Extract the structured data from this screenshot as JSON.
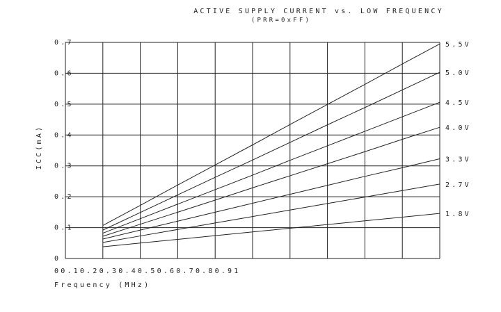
{
  "chart_data": {
    "type": "line",
    "title": "ACTIVE SUPPLY CURRENT vs. LOW FREQUENCY",
    "subtitle": "(PRR=0xFF)",
    "xlabel": "Frequency (MHz)",
    "ylabel": "ICC(mA)",
    "x": [
      0.1,
      0.2,
      0.3,
      0.4,
      0.5,
      0.6,
      0.7,
      0.8,
      0.9,
      1
    ],
    "series": [
      {
        "name": "5.5V",
        "color": "#222222",
        "values": [
          0.107,
          0.172,
          0.238,
          0.303,
          0.368,
          0.434,
          0.499,
          0.564,
          0.63,
          0.695
        ]
      },
      {
        "name": "5.0V",
        "color": "#222222",
        "values": [
          0.092,
          0.149,
          0.206,
          0.263,
          0.319,
          0.376,
          0.433,
          0.489,
          0.546,
          0.603
        ]
      },
      {
        "name": "4.5V",
        "color": "#222222",
        "values": [
          0.082,
          0.129,
          0.176,
          0.223,
          0.27,
          0.318,
          0.365,
          0.412,
          0.459,
          0.506
        ]
      },
      {
        "name": "4.0V",
        "color": "#222222",
        "values": [
          0.072,
          0.111,
          0.15,
          0.189,
          0.229,
          0.268,
          0.307,
          0.346,
          0.386,
          0.425
        ]
      },
      {
        "name": "3.3V",
        "color": "#222222",
        "values": [
          0.063,
          0.092,
          0.121,
          0.15,
          0.179,
          0.208,
          0.237,
          0.266,
          0.294,
          0.323
        ]
      },
      {
        "name": "2.7V",
        "color": "#222222",
        "values": [
          0.052,
          0.073,
          0.094,
          0.115,
          0.136,
          0.157,
          0.178,
          0.199,
          0.22,
          0.241
        ]
      },
      {
        "name": "1.8V",
        "color": "#222222",
        "values": [
          0.038,
          0.05,
          0.062,
          0.074,
          0.086,
          0.098,
          0.11,
          0.122,
          0.134,
          0.146
        ]
      }
    ],
    "xlim": [
      0,
      1
    ],
    "xticks": [
      0,
      0.1,
      0.2,
      0.3,
      0.4,
      0.5,
      0.6,
      0.7,
      0.8,
      0.9,
      1
    ],
    "ylim": [
      0,
      0.7
    ],
    "yticks": [
      0,
      0.1,
      0.2,
      0.3,
      0.4,
      0.5,
      0.6,
      0.7
    ],
    "grid": true
  }
}
